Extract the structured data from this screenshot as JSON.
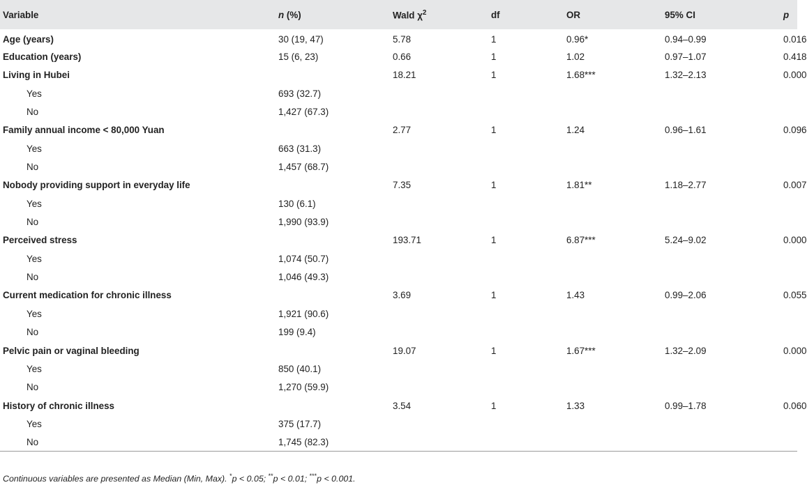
{
  "table": {
    "headers": {
      "variable": "Variable",
      "n_italic": "n",
      "n_rest": " (%)",
      "wald": "Wald χ",
      "wald_sup": "2",
      "df": "df",
      "or": "OR",
      "ci": "95% CI",
      "p": "p"
    },
    "rows": [
      {
        "type": "var",
        "label": "Age (years)",
        "n": "30 (19, 47)",
        "wald": "5.78",
        "df": "1",
        "or": "0.96*",
        "ci": "0.94–0.99",
        "p": "0.016"
      },
      {
        "type": "var",
        "label": "Education (years)",
        "n": "15 (6, 23)",
        "wald": "0.66",
        "df": "1",
        "or": "1.02",
        "ci": "0.97–1.07",
        "p": "0.418"
      },
      {
        "type": "var",
        "label": "Living in Hubei",
        "n": "",
        "wald": "18.21",
        "df": "1",
        "or": "1.68***",
        "ci": "1.32–2.13",
        "p": "0.000"
      },
      {
        "type": "sub",
        "label": "Yes",
        "n": "693 (32.7)",
        "wald": "",
        "df": "",
        "or": "",
        "ci": "",
        "p": ""
      },
      {
        "type": "sub",
        "label": "No",
        "n": "1,427 (67.3)",
        "wald": "",
        "df": "",
        "or": "",
        "ci": "",
        "p": ""
      },
      {
        "type": "var",
        "label": "Family annual income < 80,000 Yuan",
        "n": "",
        "wald": "2.77",
        "df": "1",
        "or": "1.24",
        "ci": "0.96–1.61",
        "p": "0.096"
      },
      {
        "type": "sub",
        "label": "Yes",
        "n": "663 (31.3)",
        "wald": "",
        "df": "",
        "or": "",
        "ci": "",
        "p": ""
      },
      {
        "type": "sub",
        "label": "No",
        "n": "1,457 (68.7)",
        "wald": "",
        "df": "",
        "or": "",
        "ci": "",
        "p": ""
      },
      {
        "type": "var",
        "label": "Nobody providing support in everyday life",
        "n": "",
        "wald": "7.35",
        "df": "1",
        "or": "1.81**",
        "ci": "1.18–2.77",
        "p": "0.007"
      },
      {
        "type": "sub",
        "label": "Yes",
        "n": "130 (6.1)",
        "wald": "",
        "df": "",
        "or": "",
        "ci": "",
        "p": ""
      },
      {
        "type": "sub",
        "label": "No",
        "n": "1,990 (93.9)",
        "wald": "",
        "df": "",
        "or": "",
        "ci": "",
        "p": ""
      },
      {
        "type": "var",
        "label": "Perceived stress",
        "n": "",
        "wald": "193.71",
        "df": "1",
        "or": "6.87***",
        "ci": "5.24–9.02",
        "p": "0.000"
      },
      {
        "type": "sub",
        "label": "Yes",
        "n": "1,074 (50.7)",
        "wald": "",
        "df": "",
        "or": "",
        "ci": "",
        "p": ""
      },
      {
        "type": "sub",
        "label": "No",
        "n": "1,046 (49.3)",
        "wald": "",
        "df": "",
        "or": "",
        "ci": "",
        "p": ""
      },
      {
        "type": "var",
        "label": "Current medication for chronic illness",
        "n": "",
        "wald": "3.69",
        "df": "1",
        "or": "1.43",
        "ci": "0.99–2.06",
        "p": "0.055"
      },
      {
        "type": "sub",
        "label": "Yes",
        "n": "1,921 (90.6)",
        "wald": "",
        "df": "",
        "or": "",
        "ci": "",
        "p": ""
      },
      {
        "type": "sub",
        "label": "No",
        "n": "199 (9.4)",
        "wald": "",
        "df": "",
        "or": "",
        "ci": "",
        "p": ""
      },
      {
        "type": "var",
        "label": "Pelvic pain or vaginal bleeding",
        "n": "",
        "wald": "19.07",
        "df": "1",
        "or": "1.67***",
        "ci": "1.32–2.09",
        "p": "0.000"
      },
      {
        "type": "sub",
        "label": "Yes",
        "n": "850 (40.1)",
        "wald": "",
        "df": "",
        "or": "",
        "ci": "",
        "p": ""
      },
      {
        "type": "sub",
        "label": "No",
        "n": "1,270 (59.9)",
        "wald": "",
        "df": "",
        "or": "",
        "ci": "",
        "p": ""
      },
      {
        "type": "var",
        "label": "History of chronic illness",
        "n": "",
        "wald": "3.54",
        "df": "1",
        "or": "1.33",
        "ci": "0.99–1.78",
        "p": "0.060"
      },
      {
        "type": "sub",
        "label": "Yes",
        "n": "375 (17.7)",
        "wald": "",
        "df": "",
        "or": "",
        "ci": "",
        "p": ""
      },
      {
        "type": "sub",
        "label": "No",
        "n": "1,745 (82.3)",
        "wald": "",
        "df": "",
        "or": "",
        "ci": "",
        "p": ""
      }
    ]
  },
  "footnote": {
    "lead": "Continuous variables are presented as Median (Min, Max). ",
    "s1": "*",
    "t1": "p < 0.05; ",
    "s2": "**",
    "t2": "p < 0.01; ",
    "s3": "***",
    "t3": "p < 0.001."
  }
}
